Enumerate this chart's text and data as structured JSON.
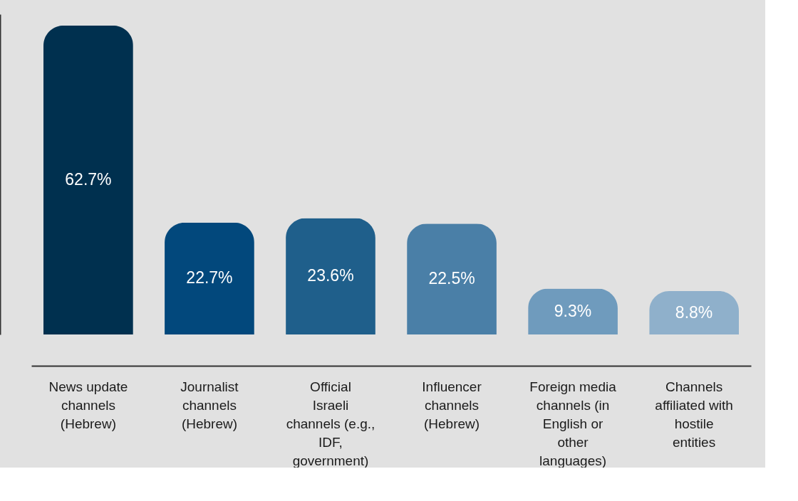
{
  "chart_data": {
    "type": "bar",
    "categories": [
      "News update channels (Hebrew)",
      "Journalist channels (Hebrew)",
      "Official Israeli channels (e.g., IDF, government)",
      "Influencer channels (Hebrew)",
      "Foreign media channels (in English or other languages)",
      "Channels affiliated with hostile entities"
    ],
    "values": [
      62.7,
      22.7,
      23.6,
      22.5,
      9.3,
      8.8
    ],
    "value_labels": [
      "62.7%",
      "22.7%",
      "23.6%",
      "22.5%",
      "9.3%",
      "8.8%"
    ],
    "colors": [
      "#00304f",
      "#02487c",
      "#1f5f8b",
      "#4a7fa7",
      "#6f9bbd",
      "#8fb0cb"
    ],
    "tick_labels": "x"
  }
}
